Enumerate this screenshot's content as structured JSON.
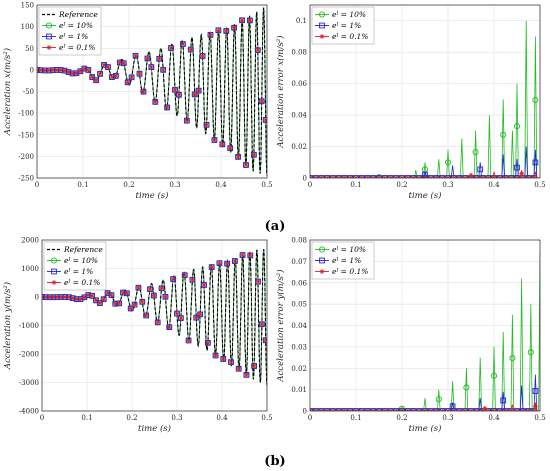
{
  "figure": {
    "panel_labels": [
      "(a)",
      "(b)"
    ]
  },
  "colors": {
    "reference": "#000000",
    "e10": "#22bb22",
    "e1": "#2222dd",
    "e01": "#dd2222",
    "grid": "#d9d9d9",
    "axis": "#262626"
  },
  "chart_data": [
    {
      "id": "a-left",
      "type": "line",
      "title": "",
      "xlabel": "time (s)",
      "ylabel": "Acceleration x(m/s²)",
      "xlim": [
        0,
        0.5
      ],
      "ylim": [
        -250,
        150
      ],
      "xticks": [
        "0",
        "0.1",
        "0.2",
        "0.3",
        "0.4",
        "0.5"
      ],
      "yticks": [
        "-250",
        "-200",
        "-150",
        "-100",
        "-50",
        "0",
        "50",
        "100",
        "150"
      ],
      "grid": true,
      "legend_position": "top-left",
      "legend": [
        "Reference",
        "eᴵ = 10%",
        "eᴵ = 1%",
        "eᴵ = 0.1%"
      ],
      "envelope": {
        "x": [
          0,
          0.05,
          0.09,
          0.12,
          0.17,
          0.22,
          0.27,
          0.32,
          0.37,
          0.42,
          0.47,
          0.5
        ],
        "upper": [
          0,
          0,
          2,
          5,
          20,
          35,
          50,
          70,
          85,
          100,
          130,
          150
        ],
        "lower": [
          0,
          -5,
          -10,
          -25,
          -20,
          -45,
          -85,
          -115,
          -150,
          -190,
          -235,
          -245
        ]
      },
      "series": [
        {
          "name": "Reference",
          "color": "#000000",
          "style": "dashed"
        },
        {
          "name": "eᴵ = 10%",
          "color": "#22bb22",
          "marker": "circle"
        },
        {
          "name": "eᴵ = 1%",
          "color": "#2222dd",
          "marker": "square"
        },
        {
          "name": "eᴵ = 0.1%",
          "color": "#dd2222",
          "marker": "star"
        }
      ]
    },
    {
      "id": "a-right",
      "type": "line",
      "title": "",
      "xlabel": "time (s)",
      "ylabel": "Acceleration error x(m/s²)",
      "xlim": [
        0,
        0.5
      ],
      "ylim": [
        0,
        0.11
      ],
      "xticks": [
        "0",
        "0.1",
        "0.2",
        "0.3",
        "0.4",
        "0.5"
      ],
      "yticks": [
        "0",
        "0.02",
        "0.04",
        "0.06",
        "0.08",
        "0.1"
      ],
      "grid": true,
      "legend_position": "top-left",
      "legend": [
        "eᴵ = 10%",
        "eᴵ = 1%",
        "eᴵ = 0.1%"
      ],
      "spikes": {
        "e10": [
          [
            0.15,
            0.001
          ],
          [
            0.23,
            0.005
          ],
          [
            0.25,
            0.01
          ],
          [
            0.28,
            0.012
          ],
          [
            0.3,
            0.018
          ],
          [
            0.33,
            0.025
          ],
          [
            0.36,
            0.03
          ],
          [
            0.39,
            0.04
          ],
          [
            0.42,
            0.05
          ],
          [
            0.44,
            0.03
          ],
          [
            0.45,
            0.06
          ],
          [
            0.47,
            0.1
          ],
          [
            0.49,
            0.09
          ]
        ],
        "e1": [
          [
            0.25,
            0.004
          ],
          [
            0.31,
            0.008
          ],
          [
            0.37,
            0.01
          ],
          [
            0.42,
            0.015
          ],
          [
            0.45,
            0.012
          ],
          [
            0.47,
            0.02
          ],
          [
            0.49,
            0.018
          ]
        ],
        "e01": [
          [
            0.35,
            0.003
          ],
          [
            0.4,
            0.004
          ],
          [
            0.46,
            0.005
          ],
          [
            0.49,
            0.004
          ]
        ]
      },
      "series": [
        {
          "name": "eᴵ = 10%",
          "color": "#22bb22",
          "marker": "circle"
        },
        {
          "name": "eᴵ = 1%",
          "color": "#2222dd",
          "marker": "square"
        },
        {
          "name": "eᴵ = 0.1%",
          "color": "#dd2222",
          "marker": "star"
        }
      ]
    },
    {
      "id": "b-left",
      "type": "line",
      "title": "",
      "xlabel": "time (s)",
      "ylabel": "Acceleration y(m/s²)",
      "xlim": [
        0,
        0.5
      ],
      "ylim": [
        -4000,
        2000
      ],
      "xticks": [
        "0",
        "0.1",
        "0.2",
        "0.3",
        "0.4",
        "0.5"
      ],
      "yticks": [
        "-4000",
        "-3000",
        "-2000",
        "-1000",
        "0",
        "1000",
        "2000"
      ],
      "grid": true,
      "legend_position": "top-left",
      "legend": [
        "Reference",
        "eᴵ = 10%",
        "eᴵ = 1%",
        "eᴵ = 0.1%"
      ],
      "envelope": {
        "x": [
          0,
          0.05,
          0.09,
          0.12,
          0.17,
          0.22,
          0.27,
          0.32,
          0.37,
          0.42,
          0.47,
          0.5
        ],
        "upper": [
          0,
          0,
          50,
          100,
          200,
          350,
          600,
          900,
          1100,
          1300,
          1650,
          1700
        ],
        "lower": [
          0,
          -30,
          -100,
          -200,
          -300,
          -600,
          -1000,
          -1500,
          -1900,
          -2400,
          -2900,
          -3100
        ]
      },
      "series": [
        {
          "name": "Reference",
          "color": "#000000",
          "style": "dashed"
        },
        {
          "name": "eᴵ = 10%",
          "color": "#22bb22",
          "marker": "circle"
        },
        {
          "name": "eᴵ = 1%",
          "color": "#2222dd",
          "marker": "square"
        },
        {
          "name": "eᴵ = 0.1%",
          "color": "#dd2222",
          "marker": "star"
        }
      ]
    },
    {
      "id": "b-right",
      "type": "line",
      "title": "",
      "xlabel": "time (s)",
      "ylabel": "Acceleration error y(m/s²)",
      "xlim": [
        0,
        0.5
      ],
      "ylim": [
        0,
        0.08
      ],
      "xticks": [
        "0",
        "0.1",
        "0.2",
        "0.3",
        "0.4",
        "0.5"
      ],
      "yticks": [
        "0",
        "0.01",
        "0.02",
        "0.03",
        "0.04",
        "0.05",
        "0.06",
        "0.07",
        "0.08"
      ],
      "grid": true,
      "legend_position": "top-left",
      "legend": [
        "eᴵ = 10%",
        "eᴵ = 1%",
        "eᴵ = 0.1%"
      ],
      "spikes": {
        "e10": [
          [
            0.2,
            0.002
          ],
          [
            0.25,
            0.006
          ],
          [
            0.28,
            0.01
          ],
          [
            0.31,
            0.014
          ],
          [
            0.34,
            0.02
          ],
          [
            0.37,
            0.025
          ],
          [
            0.4,
            0.03
          ],
          [
            0.42,
            0.037
          ],
          [
            0.44,
            0.045
          ],
          [
            0.46,
            0.062
          ],
          [
            0.48,
            0.05
          ],
          [
            0.5,
            0.075
          ]
        ],
        "e1": [
          [
            0.31,
            0.004
          ],
          [
            0.37,
            0.006
          ],
          [
            0.42,
            0.009
          ],
          [
            0.46,
            0.012
          ],
          [
            0.49,
            0.017
          ]
        ],
        "e01": [
          [
            0.38,
            0.002
          ],
          [
            0.44,
            0.003
          ],
          [
            0.49,
            0.004
          ]
        ]
      },
      "series": [
        {
          "name": "eᴵ = 10%",
          "color": "#22bb22",
          "marker": "circle"
        },
        {
          "name": "eᴵ = 1%",
          "color": "#2222dd",
          "marker": "square"
        },
        {
          "name": "eᴵ = 0.1%",
          "color": "#dd2222",
          "marker": "star"
        }
      ]
    }
  ]
}
